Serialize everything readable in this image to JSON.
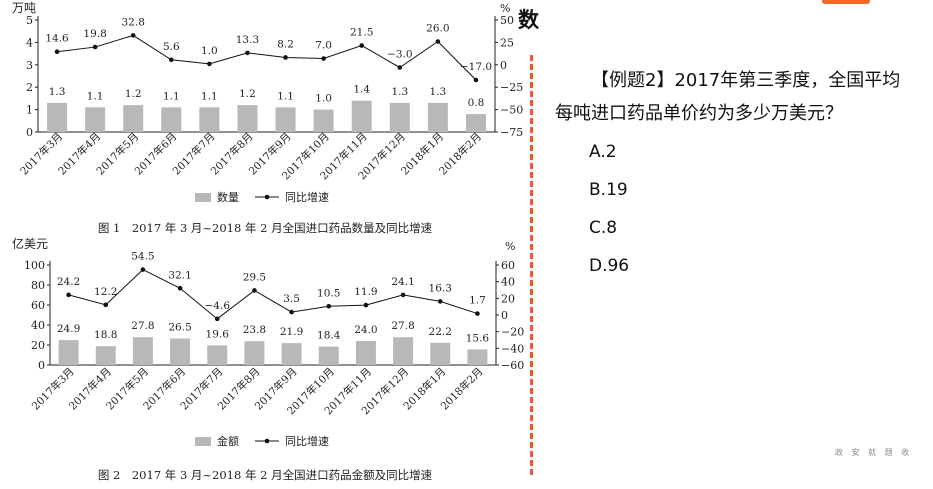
{
  "header_fragment": "数",
  "question": {
    "stem": "【例题2】2017年第三季度，全国平均每吨进口药品单价约为多少万美元？",
    "options": [
      "A.2",
      "B.19",
      "C.8",
      "D.96"
    ]
  },
  "watermark": "政 安 就 题 收",
  "chart_data": [
    {
      "type": "bar",
      "title": "图 1　2017 年 3 月~2018 年 2 月全国进口药品数量及同比增速",
      "categories": [
        "2017年3月",
        "2017年4月",
        "2017年5月",
        "2017年6月",
        "2017年7月",
        "2017年8月",
        "2017年9月",
        "2017年10月",
        "2017年11月",
        "2017年12月",
        "2018年1月",
        "2018年2月"
      ],
      "ylabel_left": "万吨",
      "ylabel_right": "%",
      "ylim_left": [
        0,
        5
      ],
      "yticks_left": [
        0,
        1,
        2,
        3,
        4,
        5
      ],
      "ylim_right": [
        -75,
        50
      ],
      "yticks_right": [
        -75,
        -50,
        -25,
        0,
        25,
        50
      ],
      "series": [
        {
          "name": "数量",
          "kind": "bar",
          "axis": "left",
          "values": [
            1.3,
            1.1,
            1.2,
            1.1,
            1.1,
            1.2,
            1.1,
            1.0,
            1.4,
            1.3,
            1.3,
            0.8
          ]
        },
        {
          "name": "同比增速",
          "kind": "line",
          "axis": "right",
          "values": [
            14.6,
            19.8,
            32.8,
            5.6,
            1.0,
            13.3,
            8.2,
            7.0,
            21.5,
            -3.0,
            26.0,
            -17.0
          ]
        }
      ],
      "legend": "bottom",
      "grid": false
    },
    {
      "type": "bar",
      "title": "图 2　2017 年 3 月~2018 年 2 月全国进口药品金额及同比增速",
      "categories": [
        "2017年3月",
        "2017年4月",
        "2017年5月",
        "2017年6月",
        "2017年7月",
        "2017年8月",
        "2017年9月",
        "2017年10月",
        "2017年11月",
        "2017年12月",
        "2018年1月",
        "2018年2月"
      ],
      "ylabel_left": "亿美元",
      "ylabel_right": "%",
      "ylim_left": [
        0,
        100
      ],
      "yticks_left": [
        0,
        20,
        40,
        60,
        80,
        100
      ],
      "ylim_right": [
        -60,
        60
      ],
      "yticks_right": [
        -60,
        -40,
        -20,
        0,
        20,
        40,
        60
      ],
      "series": [
        {
          "name": "金额",
          "kind": "bar",
          "axis": "left",
          "values": [
            24.9,
            18.8,
            27.8,
            26.5,
            19.6,
            23.8,
            21.9,
            18.4,
            24.0,
            27.8,
            22.2,
            15.6
          ]
        },
        {
          "name": "同比增速",
          "kind": "line",
          "axis": "right",
          "values": [
            24.2,
            12.2,
            54.5,
            32.1,
            -4.6,
            29.5,
            3.5,
            10.5,
            11.9,
            24.1,
            16.3,
            1.7
          ]
        }
      ],
      "legend": "bottom",
      "grid": false
    }
  ]
}
